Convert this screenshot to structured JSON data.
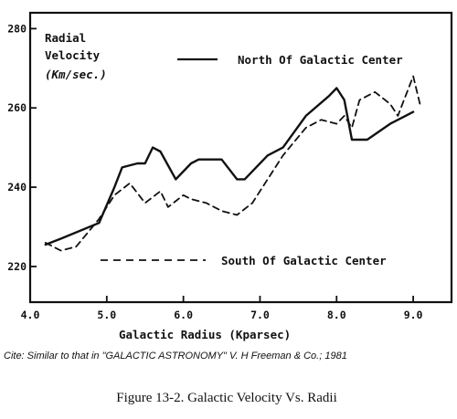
{
  "chart_data": {
    "type": "line",
    "xlabel": "Galactic Radius (Kparsec)",
    "ylabel_lines": [
      "Radial",
      "Velocity",
      "(Km/sec.)"
    ],
    "x_ticks": [
      "4.0",
      "5.0",
      "6.0",
      "7.0",
      "8.0",
      "9.0"
    ],
    "y_ticks": [
      "220",
      "240",
      "260",
      "280"
    ],
    "xlim": [
      4.0,
      9.5
    ],
    "ylim": [
      211,
      284
    ],
    "grid": false,
    "series": [
      {
        "name": "North Of Galactic Center",
        "style": "solid",
        "x": [
          4.2,
          4.4,
          4.9,
          5.1,
          5.2,
          5.4,
          5.5,
          5.6,
          5.7,
          5.9,
          6.1,
          6.2,
          6.3,
          6.4,
          6.5,
          6.7,
          6.8,
          7.1,
          7.3,
          7.6,
          7.9,
          8.0,
          8.1,
          8.2,
          8.4,
          8.7,
          9.0
        ],
        "y": [
          225.5,
          227,
          231,
          240,
          245,
          246,
          246,
          250,
          249,
          242,
          246,
          247,
          247,
          247,
          247,
          242,
          242,
          248,
          250,
          258,
          263,
          265,
          262,
          252,
          252,
          256,
          259
        ]
      },
      {
        "name": "South Of Galactic Center",
        "style": "dashed",
        "x": [
          4.2,
          4.4,
          4.6,
          4.9,
          5.1,
          5.3,
          5.5,
          5.7,
          5.8,
          6.0,
          6.1,
          6.3,
          6.5,
          6.7,
          6.9,
          7.1,
          7.3,
          7.6,
          7.8,
          8.0,
          8.1,
          8.2,
          8.3,
          8.5,
          8.7,
          8.8,
          9.0,
          9.1
        ],
        "y": [
          226,
          224,
          225,
          232,
          238,
          241,
          236,
          239,
          235,
          238,
          237,
          236,
          234,
          233,
          236,
          242,
          248,
          255,
          257,
          256,
          258,
          255,
          262,
          264,
          261,
          258,
          268,
          260
        ]
      }
    ]
  },
  "caption": {
    "cite": "Cite: Similar to that in \"GALACTIC ASTRONOMY\" V. H Freeman & Co.; 1981",
    "figure": "Figure 13-2.  Galactic Velocity Vs. Radii"
  }
}
